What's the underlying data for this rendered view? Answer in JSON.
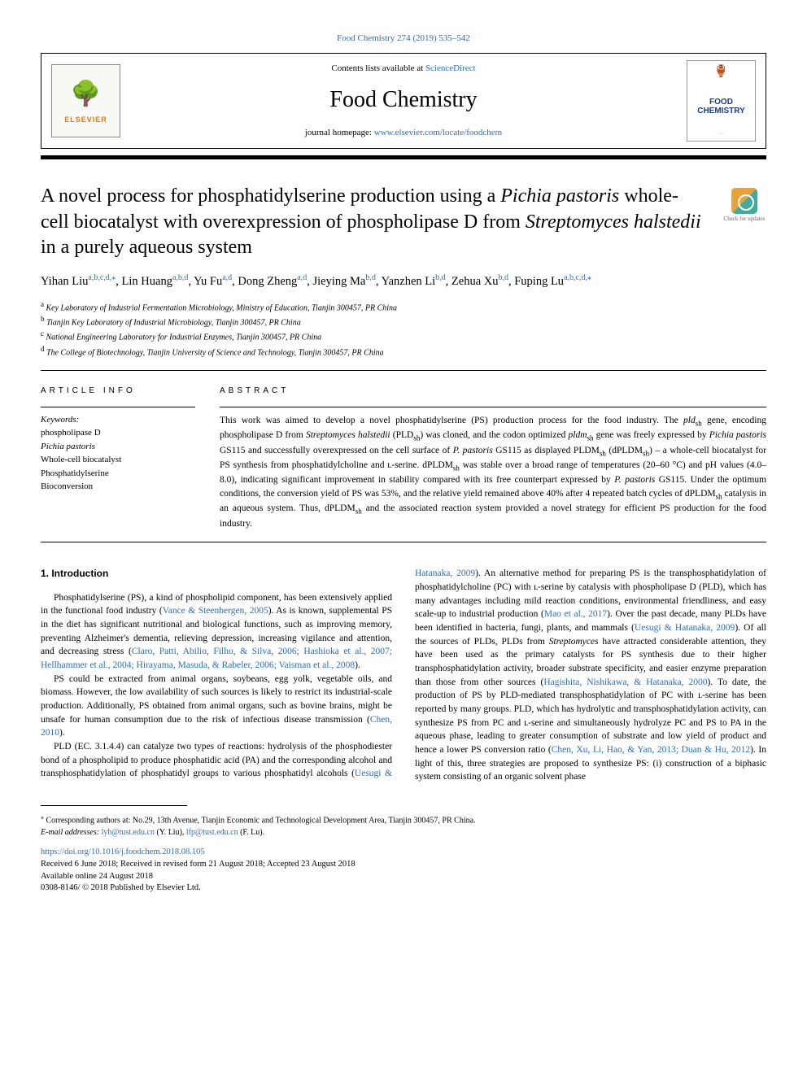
{
  "header_ref": {
    "journal": "Food Chemistry",
    "citation": "274 (2019) 535–542"
  },
  "header_box": {
    "contents_available": "Contents lists available at",
    "sciencedirect": "ScienceDirect",
    "journal_name": "Food Chemistry",
    "journal_homepage_label": "journal homepage:",
    "journal_homepage_url": "www.elsevier.com/locate/foodchem",
    "elsevier_name": "ELSEVIER",
    "journal_logo_top": "FOOD",
    "journal_logo_bot": "CHEMISTRY"
  },
  "title_parts": {
    "p1": "A novel process for phosphatidylserine production using a ",
    "i1": "Pichia pastoris",
    "p2": " whole-cell biocatalyst with overexpression of phospholipase D from ",
    "i2": "Streptomyces halstedii",
    "p3": " in a purely aqueous system"
  },
  "check_updates": "Check for updates",
  "authors": [
    {
      "name": "Yihan Liu",
      "aff": "a,b,c,d,",
      "star": true
    },
    {
      "name": "Lin Huang",
      "aff": "a,b,d"
    },
    {
      "name": "Yu Fu",
      "aff": "a,d"
    },
    {
      "name": "Dong Zheng",
      "aff": "a,d"
    },
    {
      "name": "Jieying Ma",
      "aff": "b,d"
    },
    {
      "name": "Yanzhen Li",
      "aff": "b,d"
    },
    {
      "name": "Zehua Xu",
      "aff": "b,d"
    },
    {
      "name": "Fuping Lu",
      "aff": "a,b,c,d,",
      "star": true
    }
  ],
  "affiliations": [
    {
      "sup": "a",
      "text": "Key Laboratory of Industrial Fermentation Microbiology, Ministry of Education, Tianjin 300457, PR China"
    },
    {
      "sup": "b",
      "text": "Tianjin Key Laboratory of Industrial Microbiology, Tianjin 300457, PR China"
    },
    {
      "sup": "c",
      "text": "National Engineering Laboratory for Industrial Enzymes, Tianjin 300457, PR China"
    },
    {
      "sup": "d",
      "text": "The College of Biotechnology, Tianjin University of Science and Technology, Tianjin 300457, PR China"
    }
  ],
  "article_info_heading": "ARTICLE INFO",
  "abstract_heading": "ABSTRACT",
  "keywords_label": "Keywords:",
  "keywords": [
    "phospholipase D",
    "Pichia pastoris",
    "Whole-cell biocatalyst",
    "Phosphatidylserine",
    "Bioconversion"
  ],
  "abstract": "This work was aimed to develop a novel phosphatidylserine (PS) production process for the food industry. The pldₛₕ gene, encoding phospholipase D from Streptomyces halstedii (PLDₛₕ) was cloned, and the codon optimized pldmₛₕ gene was freely expressed by Pichia pastoris GS115 and successfully overexpressed on the cell surface of P. pastoris GS115 as displayed PLDMₛₕ (dPLDMₛₕ) – a whole-cell biocatalyst for PS synthesis from phosphatidylcholine and ʟ-serine. dPLDMₛₕ was stable over a broad range of temperatures (20–60 °C) and pH values (4.0–8.0), indicating significant improvement in stability compared with its free counterpart expressed by P. pastoris GS115. Under the optimum conditions, the conversion yield of PS was 53%, and the relative yield remained above 40% after 4 repeated batch cycles of dPLDMₛₕ catalysis in an aqueous system. Thus, dPLDMₛₕ and the associated reaction system provided a novel strategy for efficient PS production for the food industry.",
  "intro_heading": "1. Introduction",
  "intro_p1": {
    "t1": "Phosphatidylserine (PS), a kind of phospholipid component, has been extensively applied in the functional food industry (",
    "c1": "Vance & Steenbergen, 2005",
    "t2": "). As is known, supplemental PS in the diet has significant nutritional and biological functions, such as improving memory, preventing Alzheimer's dementia, relieving depression, increasing vigilance and attention, and decreasing stress (",
    "c2": "Claro, Patti, Abilio, Filho, & Silva, 2006; Hashioka et al., 2007; Hellhammer et al., 2004; Hirayama, Masuda, & Rabeler, 2006; Vaisman et al., 2008",
    "t3": ")."
  },
  "intro_p2": {
    "t1": "PS could be extracted from animal organs, soybeans, egg yolk, vegetable oils, and biomass. However, the low availability of such sources is likely to restrict its industrial-scale production. Additionally, PS obtained from animal organs, such as bovine brains, might be unsafe for human consumption due to the risk of infectious disease transmission (",
    "c1": "Chen, 2010",
    "t2": ")."
  },
  "intro_p3": {
    "t1": "PLD (EC. 3.1.4.4) can catalyze two types of reactions: hydrolysis of the phosphodiester bond of a phospholipid to produce phosphatidic acid (PA) and the corresponding alcohol and transphosphatidylation of phosphatidyl groups to various phosphatidyl alcohols (",
    "c1": "Uesugi & Hatanaka, 2009",
    "t2": "). An alternative method for preparing PS is the transphosphatidylation of phosphatidylcholine (PC) with ʟ-serine by catalysis with phospholipase D (PLD), which has many advantages including mild reaction conditions, environmental friendliness, and easy scale-up to industrial production (",
    "c2": "Mao et al., 2017",
    "t3": "). Over the past decade, many PLDs have been identified in bacteria, fungi, plants, and mammals (",
    "c3": "Uesugi & Hatanaka, 2009",
    "t4": "). Of all the sources of PLDs, PLDs from ",
    "i1": "Streptomyces",
    "t5": " have attracted considerable attention, they have been used as the primary catalysts for PS synthesis due to their higher transphosphatidylation activity, broader substrate specificity, and easier enzyme preparation than those from other sources (",
    "c4": "Hagishita, Nishikawa, & Hatanaka, 2000",
    "t6": "). To date, the production of PS by PLD-mediated transphosphatidylation of PC with ʟ-serine has been reported by many groups. PLD, which has hydrolytic and transphosphatidylation activity, can synthesize PS from PC and ʟ-serine and simultaneously hydrolyze PC and PS to PA in the aqueous phase, leading to greater consumption of substrate and low yield of product and hence a lower PS conversion ratio (",
    "c5": "Chen, Xu, Li, Hao, & Yan, 2013; Duan & Hu, 2012",
    "t7": "). In light of this, three strategies are proposed to synthesize PS: (i) construction of a biphasic system consisting of an organic solvent phase"
  },
  "corresponding": {
    "sup": "⁎",
    "text": "Corresponding authors at: No.29, 13th Avenue, Tianjin Economic and Technological Development Area, Tianjin 300457, PR China.",
    "email_label": "E-mail addresses:",
    "e1": "lyh@tust.edu.cn",
    "e1n": "(Y. Liu),",
    "e2": "lfp@tust.edu.cn",
    "e2n": "(F. Lu)."
  },
  "doi": "https://doi.org/10.1016/j.foodchem.2018.08.105",
  "pub_lines": [
    "Received 6 June 2018; Received in revised form 21 August 2018; Accepted 23 August 2018",
    "Available online 24 August 2018",
    "0308-8146/ © 2018 Published by Elsevier Ltd."
  ]
}
